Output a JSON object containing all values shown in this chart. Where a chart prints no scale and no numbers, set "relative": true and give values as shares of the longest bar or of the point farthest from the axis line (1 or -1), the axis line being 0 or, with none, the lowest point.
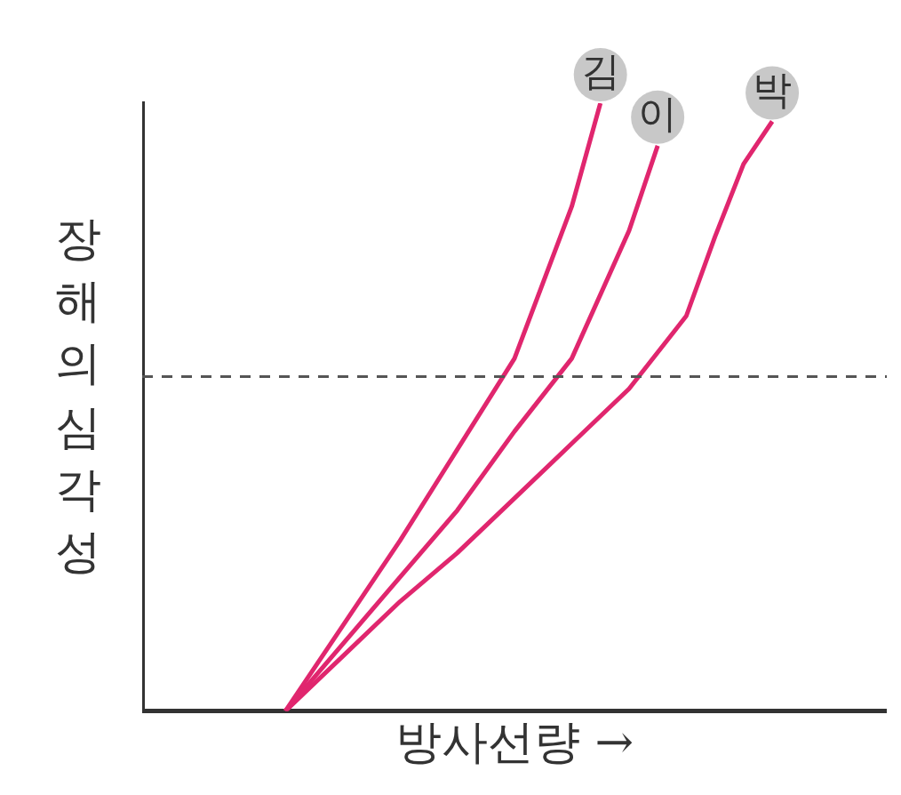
{
  "chart_data": {
    "type": "line",
    "relative": true,
    "xlabel": "방사선량 →",
    "ylabel": "장해의 심각성",
    "categories": [
      null,
      null,
      null,
      null,
      null,
      null,
      null,
      null,
      null,
      null,
      null,
      null,
      null,
      null,
      null,
      null,
      null,
      null,
      null,
      null,
      null,
      null,
      null,
      null,
      null,
      null,
      null
    ],
    "series": [
      {
        "name": "김",
        "color": "#e0266e",
        "values": [
          null,
          null,
          null,
          null,
          null,
          0,
          null,
          0.14,
          null,
          0.28,
          null,
          0.43,
          null,
          0.58,
          null,
          0.83,
          1,
          null,
          null,
          null,
          null,
          null,
          null,
          null,
          null,
          null,
          null
        ]
      },
      {
        "name": "이",
        "color": "#e0266e",
        "values": [
          null,
          null,
          null,
          null,
          null,
          0,
          null,
          0.11,
          null,
          0.22,
          null,
          0.33,
          null,
          0.46,
          null,
          0.58,
          null,
          0.79,
          0.93,
          null,
          null,
          null,
          null,
          null,
          null,
          null,
          null
        ]
      },
      {
        "name": "박",
        "color": "#e0266e",
        "values": [
          null,
          null,
          null,
          null,
          null,
          0,
          null,
          0.09,
          null,
          0.18,
          null,
          0.26,
          null,
          0.35,
          null,
          0.44,
          null,
          0.53,
          null,
          0.65,
          0.78,
          0.9,
          0.97,
          null,
          null,
          null,
          null
        ]
      }
    ],
    "ref_lines": [
      {
        "axis": "y",
        "value": 0.55,
        "line_style": "dashed",
        "color": "#555555"
      }
    ],
    "grid": false,
    "legend": false,
    "marker": "none",
    "line_style": "solid"
  }
}
